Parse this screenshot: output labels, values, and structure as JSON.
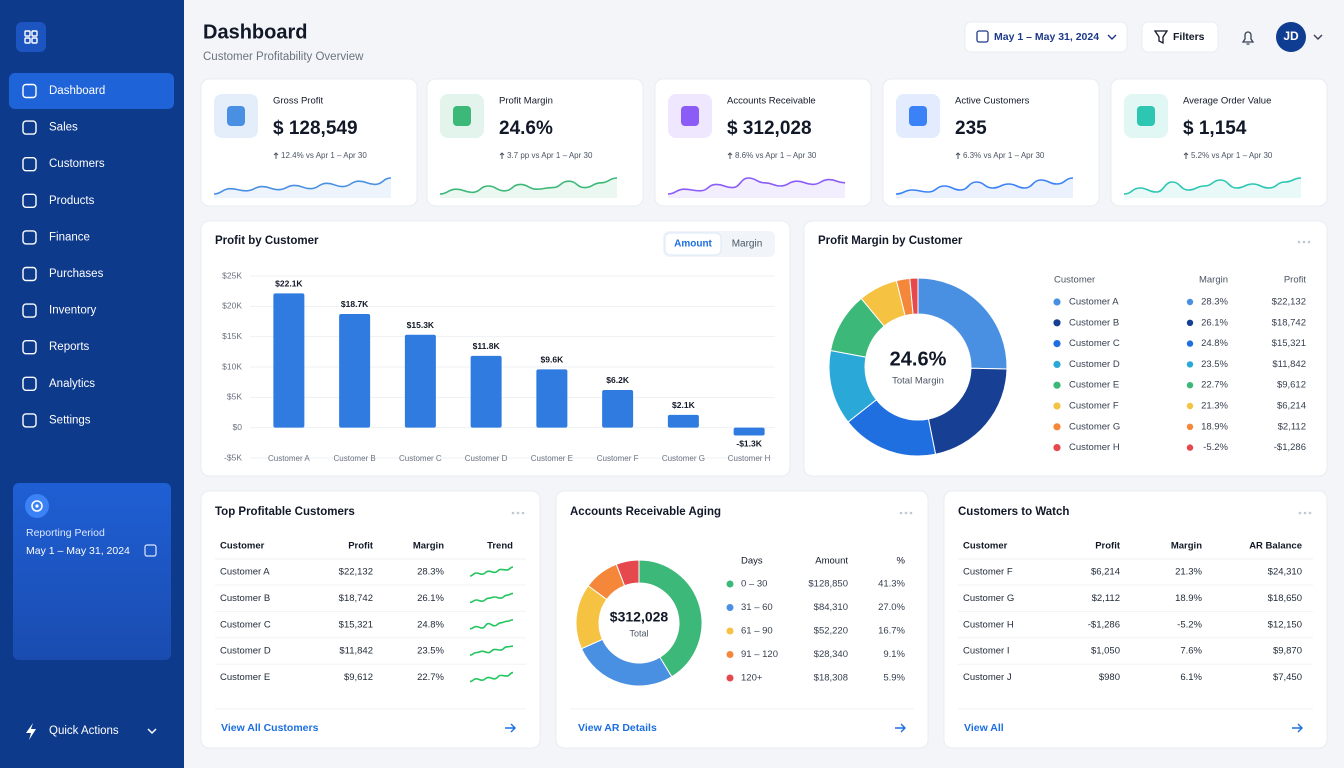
{
  "sidebar": {
    "nav": [
      "Dashboard",
      "Sales",
      "Customers",
      "Products",
      "Finance",
      "Purchases",
      "Inventory",
      "Reports",
      "Analytics",
      "Settings"
    ],
    "period_label": "Reporting Period",
    "period_value": "May 1 – May 31, 2024",
    "quick_actions": "Quick Actions"
  },
  "header": {
    "title": "Dashboard",
    "subtitle": "Customer Profitability Overview",
    "date_range": "May 1 – May 31, 2024",
    "filters": "Filters",
    "avatar": "JD"
  },
  "kpis": [
    {
      "label": "Gross Profit",
      "value": "$ 128,549",
      "change": "12.4% vs Apr 1 – Apr 30",
      "color": "#4a90e2",
      "trend": [
        3,
        4,
        3.6,
        4.4,
        3.8,
        4.6,
        4,
        5,
        4.4,
        5.4,
        4.8,
        6
      ]
    },
    {
      "label": "Profit Margin",
      "value": "24.6%",
      "change": "3.7 pp vs Apr 1 – Apr 30",
      "color": "#3cb878",
      "trend": [
        4,
        4.6,
        4.2,
        5,
        4.4,
        5.2,
        4.6,
        4.8,
        5.6,
        4.8,
        5.4,
        6
      ]
    },
    {
      "label": "Accounts Receivable",
      "value": "$ 312,028",
      "change": "8.6% vs Apr 1 – Apr 30",
      "color": "#8b5cf6",
      "trend": [
        3.6,
        4.2,
        4,
        4.8,
        4.4,
        5.6,
        5,
        4.6,
        5.2,
        4.8,
        5.4,
        5
      ]
    },
    {
      "label": "Active Customers",
      "value": "235",
      "change": "6.3% vs Apr 1 – Apr 30",
      "color": "#3b82f6",
      "trend": [
        3.8,
        4.2,
        4,
        4.6,
        4.2,
        5,
        4.4,
        4.8,
        4.4,
        5.2,
        4.8,
        5.4
      ]
    },
    {
      "label": "Average Order Value",
      "value": "$ 1,154",
      "change": "5.2% vs Apr 1 – Apr 30",
      "color": "#2cc6b3",
      "trend": [
        4,
        4.6,
        4.2,
        5.2,
        4.4,
        4.8,
        5.4,
        4.6,
        5,
        4.6,
        5.2,
        5.6
      ]
    }
  ],
  "chart_data": [
    {
      "type": "bar",
      "title": "Profit by Customer",
      "tabs": [
        "Amount",
        "Margin"
      ],
      "categories": [
        "Customer A",
        "Customer B",
        "Customer C",
        "Customer D",
        "Customer E",
        "Customer F",
        "Customer G",
        "Customer H"
      ],
      "values": [
        22132,
        18742,
        15321,
        11842,
        9612,
        6214,
        2112,
        -1286
      ],
      "value_labels": [
        "$22.1K",
        "$18.7K",
        "$15.3K",
        "$11.8K",
        "$9.6K",
        "$6.2K",
        "$2.1K",
        "-$1.3K"
      ],
      "color": "#2f7be0",
      "ylim": [
        -5000,
        25000
      ],
      "yticks": [
        {
          "value": -5000,
          "label": "-$5K"
        },
        {
          "value": 0,
          "label": "$0"
        },
        {
          "value": 5000,
          "label": "$5K"
        },
        {
          "value": 10000,
          "label": "$10K"
        },
        {
          "value": 15000,
          "label": "$15K"
        },
        {
          "value": 20000,
          "label": "$20K"
        },
        {
          "value": 25000,
          "label": "$25K"
        }
      ],
      "grid": true
    },
    {
      "type": "pie",
      "title": "Profit Margin by Customer",
      "center_value": "24.6%",
      "center_label": "Total Margin",
      "headers": [
        "Customer",
        "Margin",
        "Profit"
      ],
      "categories": [
        "Customer A",
        "Customer B",
        "Customer C",
        "Customer D",
        "Customer E",
        "Customer F",
        "Customer G",
        "Customer H"
      ],
      "values": [
        22132,
        18742,
        15321,
        11842,
        9612,
        6214,
        2112,
        -1286
      ],
      "value_labels": [
        "$22,132",
        "$18,742",
        "$15,321",
        "$11,842",
        "$9,612",
        "$6,214",
        "$2,112",
        "-$1,286"
      ],
      "margin_labels": [
        "28.3%",
        "26.1%",
        "24.8%",
        "23.5%",
        "22.7%",
        "21.3%",
        "18.9%",
        "-5.2%"
      ],
      "colors": [
        "#4a90e2",
        "#173f94",
        "#1f6fe0",
        "#2aa8d8",
        "#3cb878",
        "#f5c242",
        "#f5873a",
        "#e5484d"
      ]
    },
    {
      "type": "pie",
      "title": "Accounts Receivable Aging",
      "center_value": "$312,028",
      "center_label": "Total",
      "headers": [
        "Days",
        "Amount",
        "%"
      ],
      "categories": [
        "0 – 30",
        "31 – 60",
        "61 – 90",
        "91 – 120",
        "120+"
      ],
      "values": [
        128850,
        84310,
        52220,
        28340,
        18308
      ],
      "value_labels": [
        "$128,850",
        "$84,310",
        "$52,220",
        "$28,340",
        "$18,308"
      ],
      "percent_labels": [
        "41.3%",
        "27.0%",
        "16.7%",
        "9.1%",
        "5.9%"
      ],
      "colors": [
        "#3cb878",
        "#4a90e2",
        "#f5c242",
        "#f5873a",
        "#e5484d"
      ],
      "link": "View AR Details"
    }
  ],
  "top_customers": {
    "title": "Top Profitable Customers",
    "headers": [
      "Customer",
      "Profit",
      "Margin",
      "Trend"
    ],
    "rows": [
      {
        "cells": [
          "Customer A",
          "$22,132",
          "28.3%"
        ],
        "trend": [
          2,
          3,
          2.6,
          3.6,
          3.2,
          4.2,
          4,
          5
        ]
      },
      {
        "cells": [
          "Customer B",
          "$18,742",
          "26.1%"
        ],
        "trend": [
          2,
          2.8,
          2.4,
          3.4,
          3.8,
          3.4,
          4.4,
          5
        ]
      },
      {
        "cells": [
          "Customer C",
          "$15,321",
          "24.8%"
        ],
        "trend": [
          2.4,
          3,
          2.6,
          3.8,
          3.2,
          4,
          4.4,
          4.8
        ]
      },
      {
        "cells": [
          "Customer D",
          "$11,842",
          "23.5%"
        ],
        "trend": [
          2,
          2.8,
          3.2,
          2.8,
          3.8,
          3.6,
          4.6,
          4.8
        ]
      },
      {
        "cells": [
          "Customer E",
          "$9,612",
          "22.7%"
        ],
        "trend": [
          2.2,
          3,
          2.6,
          3.4,
          3,
          4,
          3.8,
          4.8
        ]
      }
    ],
    "link": "View All Customers"
  },
  "customers_to_watch": {
    "title": "Customers to Watch",
    "headers": [
      "Customer",
      "Profit",
      "Margin",
      "AR Balance"
    ],
    "rows": [
      [
        "Customer F",
        "$6,214",
        "21.3%",
        "$24,310"
      ],
      [
        "Customer G",
        "$2,112",
        "18.9%",
        "$18,650"
      ],
      [
        "Customer H",
        "-$1,286",
        "-5.2%",
        "$12,150"
      ],
      [
        "Customer I",
        "$1,050",
        "7.6%",
        "$9,870"
      ],
      [
        "Customer J",
        "$980",
        "6.1%",
        "$7,450"
      ]
    ],
    "link": "View All"
  }
}
